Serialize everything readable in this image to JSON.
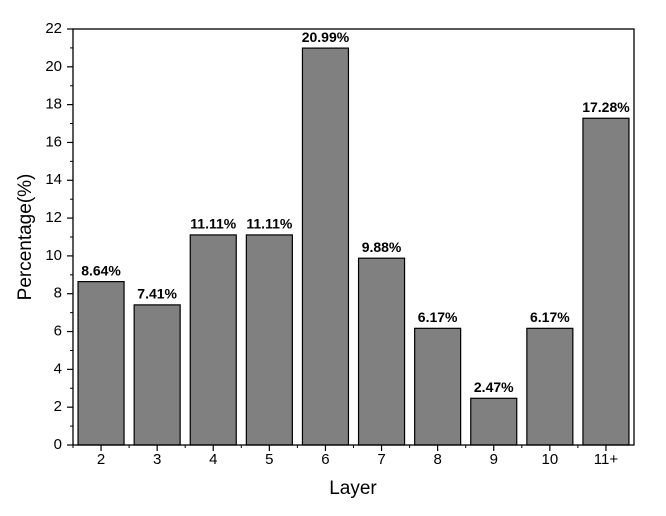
{
  "chart_data": {
    "type": "bar",
    "x_label": "Layer",
    "y_label": "Percentage(%)",
    "categories": [
      "2",
      "3",
      "4",
      "5",
      "6",
      "7",
      "8",
      "9",
      "10",
      "11+"
    ],
    "values": [
      8.64,
      7.41,
      11.11,
      11.11,
      20.99,
      9.88,
      6.17,
      2.47,
      6.17,
      17.28
    ],
    "value_labels": [
      "8.64%",
      "7.41%",
      "11.11%",
      "11.11%",
      "20.99%",
      "9.88%",
      "6.17%",
      "2.47%",
      "6.17%",
      "17.28%"
    ],
    "color": "#808080",
    "ylim": [
      0,
      22
    ],
    "yticks": [
      0,
      2,
      4,
      6,
      8,
      10,
      12,
      14,
      16,
      18,
      20,
      22
    ]
  }
}
